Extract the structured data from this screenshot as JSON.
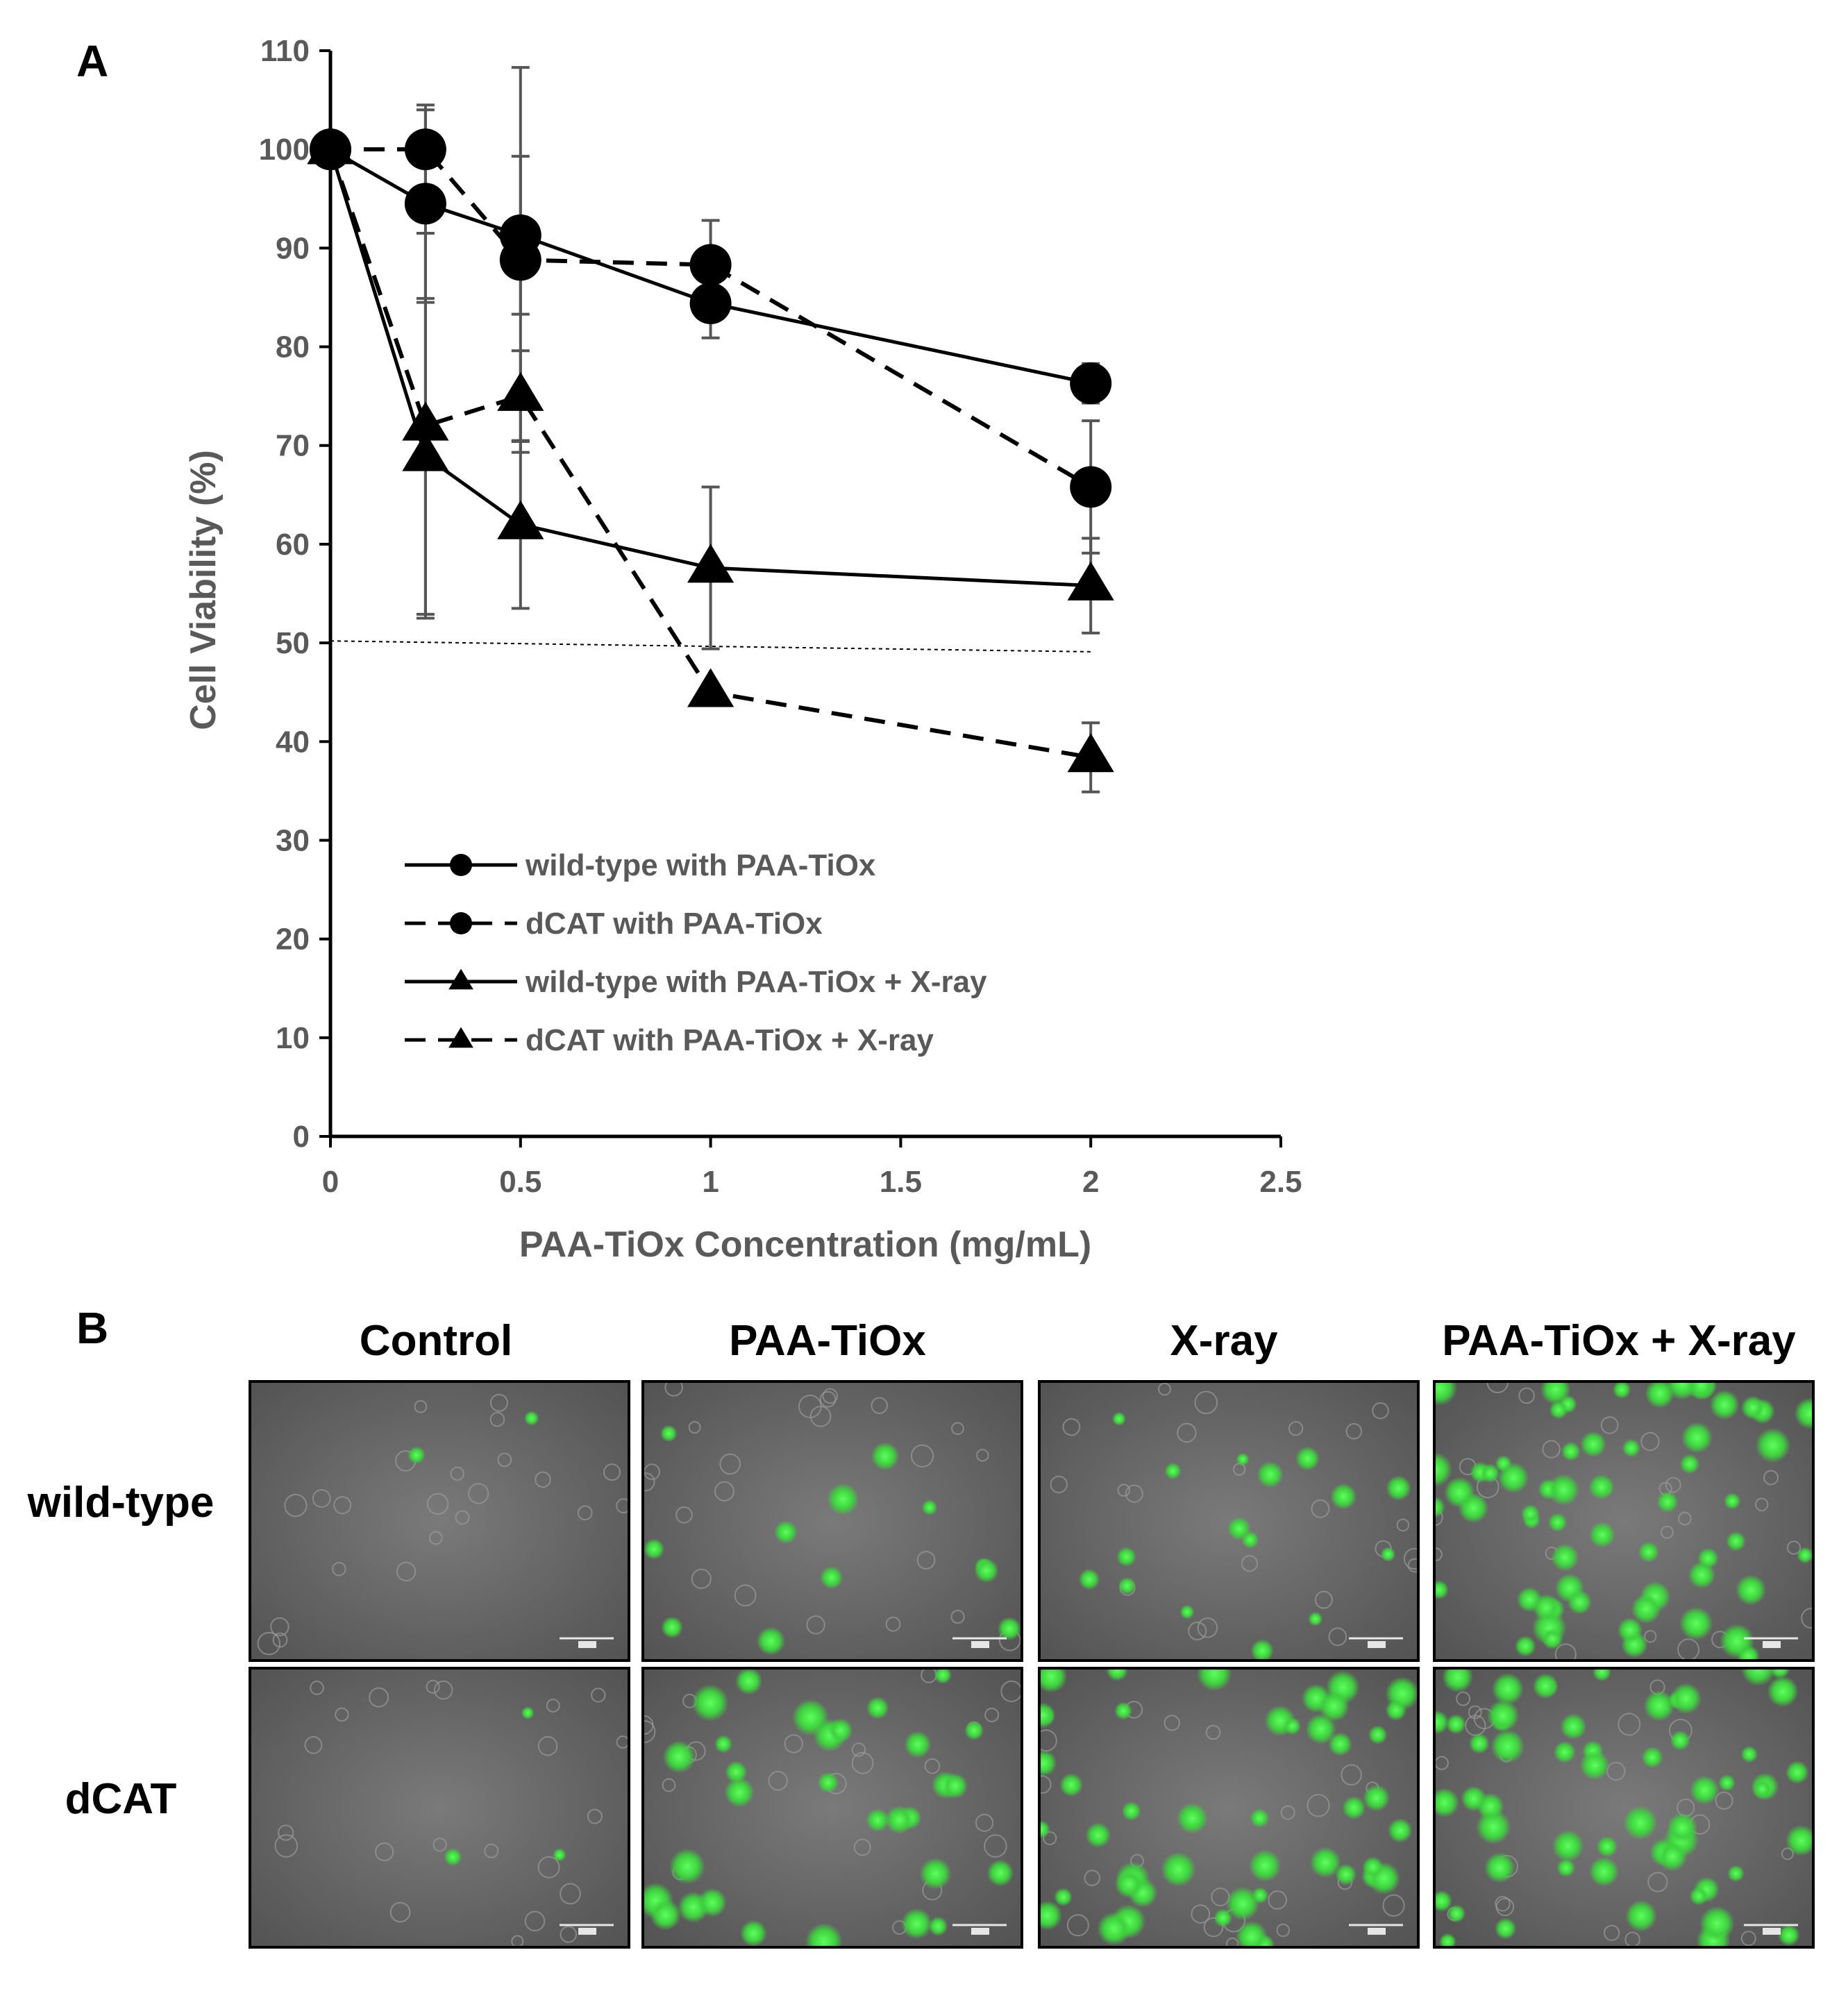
{
  "panel_a_letter": "A",
  "panel_b_letter": "B",
  "chart_data": {
    "type": "line",
    "title": "",
    "xlabel": "PAA-TiOx Concentration (mg/mL)",
    "ylabel": "Cell Viability (%)",
    "xlim": [
      0,
      2.5
    ],
    "ylim": [
      0,
      110
    ],
    "x_ticks": [
      "0",
      "0.5",
      "1",
      "1.5",
      "2",
      "2.5"
    ],
    "y_ticks": [
      "0",
      "10",
      "20",
      "30",
      "40",
      "50",
      "60",
      "70",
      "80",
      "90",
      "100",
      "110"
    ],
    "grid": false,
    "legend_position": "lower-left",
    "reference_line": {
      "y_start": 50.2,
      "y_end": 49.1,
      "x_start": 0,
      "x_end": 2,
      "style": "dotted"
    },
    "series": [
      {
        "name": "wild-type with PAA-TiOx",
        "marker": "circle",
        "line": "solid",
        "x": [
          0,
          0.25,
          0.5,
          1,
          2
        ],
        "y": [
          100,
          94.5,
          91.3,
          84.4,
          76.3
        ],
        "err": [
          0,
          10,
          8,
          3.5,
          2
        ]
      },
      {
        "name": "dCAT with PAA-TiOx",
        "marker": "circle",
        "line": "dashed",
        "x": [
          0,
          0.25,
          0.5,
          1,
          2
        ],
        "y": [
          100,
          100,
          88.8,
          88.3,
          65.8
        ],
        "err": [
          0,
          4,
          19.5,
          4.5,
          6.7
        ]
      },
      {
        "name": "wild-type with PAA-TiOx + X-ray",
        "marker": "triangle",
        "line": "solid",
        "x": [
          0,
          0.25,
          0.5,
          1,
          2
        ],
        "y": [
          100,
          68.9,
          62.0,
          57.6,
          55.8
        ],
        "err": [
          0,
          16,
          8.5,
          8.2,
          4.8
        ]
      },
      {
        "name": "dCAT with PAA-TiOx + X-ray",
        "marker": "triangle",
        "line": "dashed",
        "x": [
          0,
          0.25,
          0.5,
          1,
          2
        ],
        "y": [
          100,
          72.0,
          75.0,
          45.0,
          38.4
        ],
        "err": [
          0,
          19.5,
          4.6,
          0,
          3.5
        ]
      }
    ]
  },
  "micrographs": {
    "columns": [
      "Control",
      "PAA-TiOx",
      "X-ray",
      "PAA-TiOx + X-ray"
    ],
    "rows": [
      "wild-type",
      "dCAT"
    ],
    "fluorescence_color": "#3ed23e",
    "background_color": "#6e6e6e"
  }
}
